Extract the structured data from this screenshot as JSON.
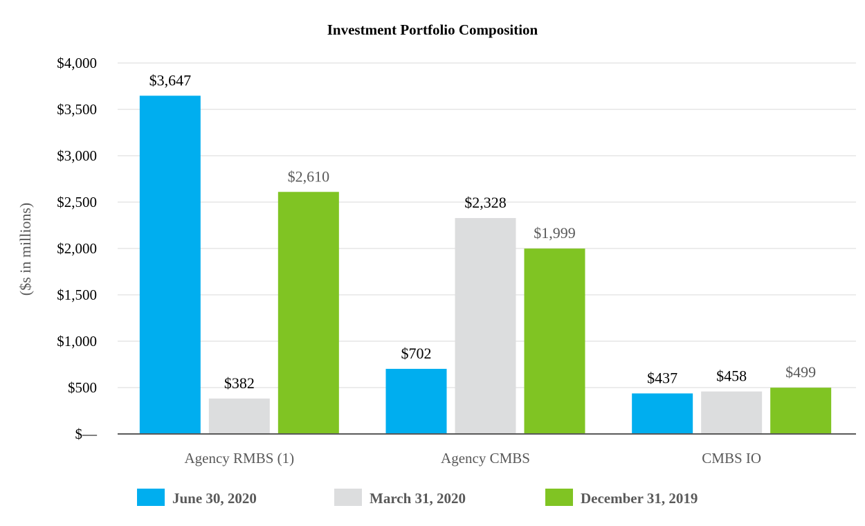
{
  "chart_data": {
    "type": "bar",
    "title": "Investment Portfolio Composition",
    "ylabel": "($s in millions)",
    "xlabel": "",
    "ylim": [
      0,
      4000
    ],
    "yticks": [
      0,
      500,
      1000,
      1500,
      2000,
      2500,
      3000,
      3500,
      4000
    ],
    "ytick_labels": [
      "$—",
      "$500",
      "$1,000",
      "$1,500",
      "$2,000",
      "$2,500",
      "$3,000",
      "$3,500",
      "$4,000"
    ],
    "categories": [
      "Agency RMBS (1)",
      "Agency CMBS",
      "CMBS IO"
    ],
    "series": [
      {
        "name": "June 30, 2020",
        "color": "#00aeef",
        "values": [
          3647,
          702,
          437
        ],
        "labels": [
          "$3,647",
          "$702",
          "$437"
        ],
        "label_color": "#000000"
      },
      {
        "name": "March 31, 2020",
        "color": "#dcddde",
        "values": [
          382,
          2328,
          458
        ],
        "labels": [
          "$382",
          "$2,328",
          "$458"
        ],
        "label_color": "#000000"
      },
      {
        "name": "December 31, 2019",
        "color": "#80c423",
        "values": [
          2610,
          1999,
          499
        ],
        "labels": [
          "$2,610",
          "$1,999",
          "$499"
        ],
        "label_color": "#595959"
      }
    ],
    "grid": true,
    "legend_position": "bottom"
  }
}
